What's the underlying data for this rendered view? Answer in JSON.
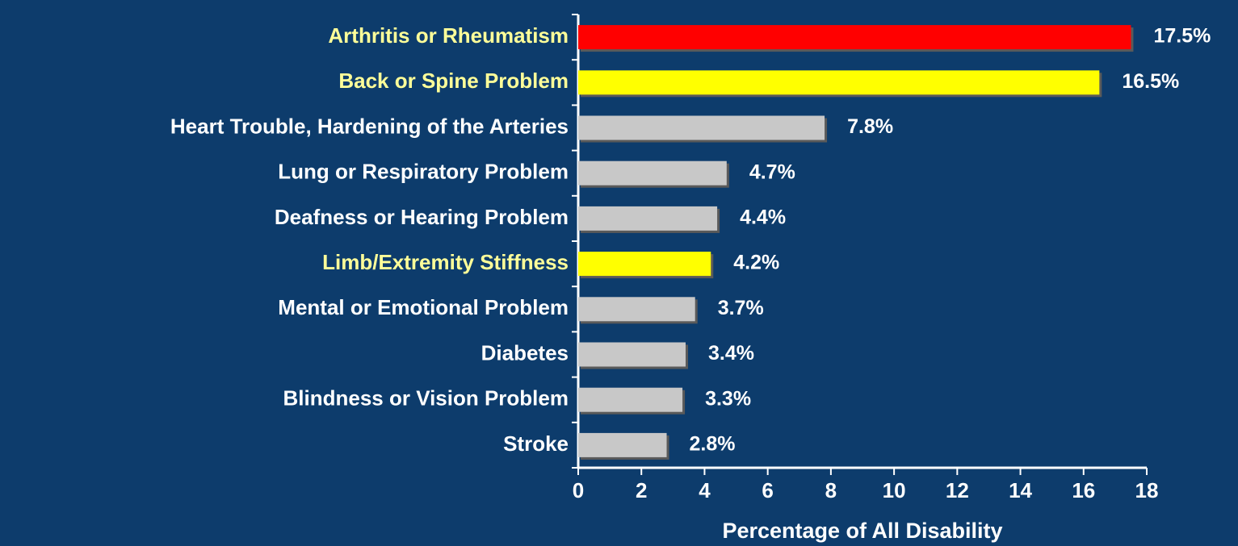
{
  "chart_data": {
    "type": "barh",
    "categories": [
      "Arthritis or Rheumatism",
      "Back or Spine Problem",
      "Heart Trouble, Hardening of the Arteries",
      "Lung or Respiratory Problem",
      "Deafness or Hearing Problem",
      "Limb/Extremity Stiffness",
      "Mental or Emotional Problem",
      "Diabetes",
      "Blindness or Vision Problem",
      "Stroke"
    ],
    "values": [
      17.5,
      16.5,
      7.8,
      4.7,
      4.4,
      4.2,
      3.7,
      3.4,
      3.3,
      2.8
    ],
    "value_labels": [
      "17.5%",
      "16.5%",
      "7.8%",
      "4.7%",
      "4.4%",
      "4.2%",
      "3.7%",
      "3.4%",
      "3.3%",
      "2.8%"
    ],
    "colors": [
      "#ff0000",
      "#ffff00",
      "#c8c8c8",
      "#c8c8c8",
      "#c8c8c8",
      "#ffff00",
      "#c8c8c8",
      "#c8c8c8",
      "#c8c8c8",
      "#c8c8c8"
    ],
    "label_colors": [
      "#ffff99",
      "#ffff99",
      "#ffffff",
      "#ffffff",
      "#ffffff",
      "#ffff99",
      "#ffffff",
      "#ffffff",
      "#ffffff",
      "#ffffff"
    ],
    "x_label": "Percentage of All Disability",
    "xlim": [
      0,
      18
    ],
    "xticks": [
      0,
      2,
      4,
      6,
      8,
      10,
      12,
      14,
      16,
      18
    ]
  }
}
